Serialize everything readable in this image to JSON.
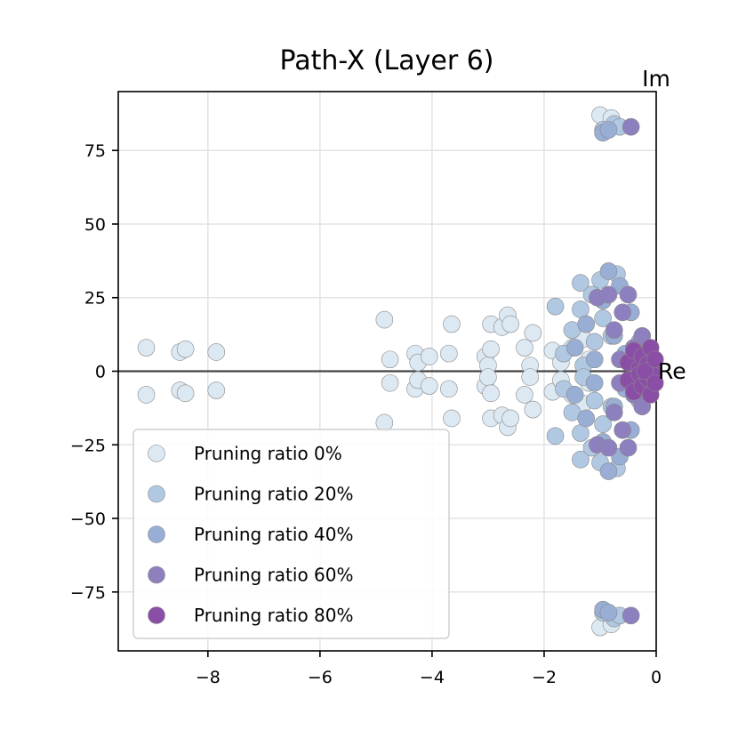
{
  "chart_data": {
    "type": "scatter",
    "title": "Path-X (Layer 6)",
    "xlabel": "Re",
    "ylabel": "Im",
    "xlim": [
      -9.6,
      0.0
    ],
    "ylim": [
      -95,
      95
    ],
    "xticks": [
      {
        "value": -8,
        "label": "−8"
      },
      {
        "value": -6,
        "label": "−6"
      },
      {
        "value": -4,
        "label": "−4"
      },
      {
        "value": -2,
        "label": "−2"
      },
      {
        "value": 0,
        "label": "0"
      }
    ],
    "yticks": [
      {
        "value": 75,
        "label": "75"
      },
      {
        "value": 50,
        "label": "50"
      },
      {
        "value": 25,
        "label": "25"
      },
      {
        "value": 0,
        "label": "0"
      },
      {
        "value": -25,
        "label": "−25"
      },
      {
        "value": -50,
        "label": "−50"
      },
      {
        "value": -75,
        "label": "−75"
      }
    ],
    "grid": true,
    "legend_position": "lower-left",
    "series": [
      {
        "name": "Pruning ratio 0%",
        "color": "#dce8f2",
        "points": [
          [
            -9.1,
            8
          ],
          [
            -9.1,
            -8
          ],
          [
            -8.5,
            6.5
          ],
          [
            -8.5,
            -6.5
          ],
          [
            -8.4,
            7.5
          ],
          [
            -8.4,
            -7.5
          ],
          [
            -7.85,
            6.5
          ],
          [
            -7.85,
            -6.5
          ],
          [
            -4.85,
            17.5
          ],
          [
            -4.85,
            -17.5
          ],
          [
            -4.75,
            4
          ],
          [
            -4.75,
            -4
          ],
          [
            -4.3,
            6
          ],
          [
            -4.3,
            -6
          ],
          [
            -4.25,
            3
          ],
          [
            -4.25,
            -3
          ],
          [
            -4.05,
            5
          ],
          [
            -4.05,
            -5
          ],
          [
            -3.65,
            16
          ],
          [
            -3.65,
            -16
          ],
          [
            -3.7,
            6
          ],
          [
            -3.7,
            -6
          ],
          [
            -3.05,
            5
          ],
          [
            -3.05,
            -5
          ],
          [
            -3.0,
            2
          ],
          [
            -3.0,
            -2
          ],
          [
            -2.95,
            16
          ],
          [
            -2.95,
            -16
          ],
          [
            -2.95,
            7.5
          ],
          [
            -2.95,
            -7.5
          ],
          [
            -2.75,
            15
          ],
          [
            -2.75,
            -15
          ],
          [
            -2.65,
            19
          ],
          [
            -2.65,
            -19
          ],
          [
            -2.6,
            16
          ],
          [
            -2.6,
            -16
          ],
          [
            -2.35,
            8
          ],
          [
            -2.35,
            -8
          ],
          [
            -2.25,
            2
          ],
          [
            -2.25,
            -2
          ],
          [
            -2.2,
            13
          ],
          [
            -2.2,
            -13
          ],
          [
            -1.85,
            7
          ],
          [
            -1.85,
            -7
          ],
          [
            -1.7,
            3
          ],
          [
            -1.7,
            -3
          ],
          [
            -1.5,
            8
          ],
          [
            -1.5,
            -8
          ],
          [
            -1.3,
            11
          ],
          [
            -1.3,
            -11
          ],
          [
            -1.2,
            4
          ],
          [
            -1.2,
            -4
          ],
          [
            -1.0,
            87
          ],
          [
            -1.0,
            -87
          ],
          [
            -0.8,
            86
          ],
          [
            -0.8,
            -86
          ]
        ]
      },
      {
        "name": "Pruning ratio 20%",
        "color": "#b0c8e2",
        "points": [
          [
            -1.8,
            22
          ],
          [
            -1.8,
            -22
          ],
          [
            -1.65,
            6
          ],
          [
            -1.65,
            -6
          ],
          [
            -1.5,
            14
          ],
          [
            -1.5,
            -14
          ],
          [
            -1.35,
            30
          ],
          [
            -1.35,
            -30
          ],
          [
            -1.35,
            21
          ],
          [
            -1.35,
            -21
          ],
          [
            -1.3,
            2
          ],
          [
            -1.3,
            -2
          ],
          [
            -1.15,
            26
          ],
          [
            -1.15,
            -26
          ],
          [
            -1.1,
            10
          ],
          [
            -1.1,
            -10
          ],
          [
            -1.0,
            31
          ],
          [
            -1.0,
            -31
          ],
          [
            -0.95,
            18
          ],
          [
            -0.95,
            -18
          ],
          [
            -0.8,
            12
          ],
          [
            -0.8,
            -12
          ],
          [
            -0.7,
            33
          ],
          [
            -0.7,
            -33
          ],
          [
            -0.95,
            82
          ],
          [
            -0.95,
            -82
          ],
          [
            -0.75,
            84
          ],
          [
            -0.75,
            -84
          ],
          [
            -0.65,
            83
          ],
          [
            -0.65,
            -83
          ]
        ]
      },
      {
        "name": "Pruning ratio 40%",
        "color": "#98aed4",
        "points": [
          [
            -1.45,
            8
          ],
          [
            -1.45,
            -8
          ],
          [
            -1.25,
            16
          ],
          [
            -1.25,
            -16
          ],
          [
            -1.1,
            4
          ],
          [
            -1.1,
            -4
          ],
          [
            -0.95,
            24
          ],
          [
            -0.95,
            -24
          ],
          [
            -0.85,
            34
          ],
          [
            -0.85,
            -34
          ],
          [
            -0.75,
            12
          ],
          [
            -0.75,
            -12
          ],
          [
            -0.65,
            29
          ],
          [
            -0.65,
            -29
          ],
          [
            -0.55,
            6
          ],
          [
            -0.55,
            -6
          ],
          [
            -0.45,
            20
          ],
          [
            -0.45,
            -20
          ],
          [
            -0.3,
            10
          ],
          [
            -0.3,
            -10
          ],
          [
            -0.95,
            81
          ],
          [
            -0.95,
            -81
          ],
          [
            -0.85,
            82
          ],
          [
            -0.85,
            -82
          ]
        ]
      },
      {
        "name": "Pruning ratio 60%",
        "color": "#8e7fbe",
        "points": [
          [
            -1.05,
            25
          ],
          [
            -1.05,
            -25
          ],
          [
            -0.85,
            26
          ],
          [
            -0.85,
            -26
          ],
          [
            -0.75,
            14
          ],
          [
            -0.75,
            -14
          ],
          [
            -0.6,
            20
          ],
          [
            -0.6,
            -20
          ],
          [
            -0.65,
            4
          ],
          [
            -0.65,
            -4
          ],
          [
            -0.5,
            26
          ],
          [
            -0.5,
            -26
          ],
          [
            -0.4,
            8
          ],
          [
            -0.4,
            -8
          ],
          [
            -0.35,
            2
          ],
          [
            -0.35,
            -2
          ],
          [
            -0.25,
            12
          ],
          [
            -0.25,
            -12
          ],
          [
            -0.1,
            6
          ],
          [
            -0.1,
            -6
          ],
          [
            -0.45,
            83
          ],
          [
            -0.45,
            -83
          ]
        ]
      },
      {
        "name": "Pruning ratio 80%",
        "color": "#8b4ea6",
        "points": [
          [
            -0.5,
            3
          ],
          [
            -0.5,
            -3
          ],
          [
            -0.4,
            7
          ],
          [
            -0.4,
            -7
          ],
          [
            -0.3,
            1
          ],
          [
            -0.3,
            -1
          ],
          [
            -0.25,
            5
          ],
          [
            -0.25,
            -5
          ],
          [
            -0.15,
            2.5
          ],
          [
            -0.15,
            -2.5
          ],
          [
            -0.1,
            8
          ],
          [
            -0.1,
            -8
          ],
          [
            -0.05,
            1.5
          ],
          [
            -0.05,
            -1.5
          ],
          [
            -0.2,
            0
          ],
          [
            -0.02,
            4
          ],
          [
            -0.02,
            -4
          ]
        ]
      }
    ]
  }
}
